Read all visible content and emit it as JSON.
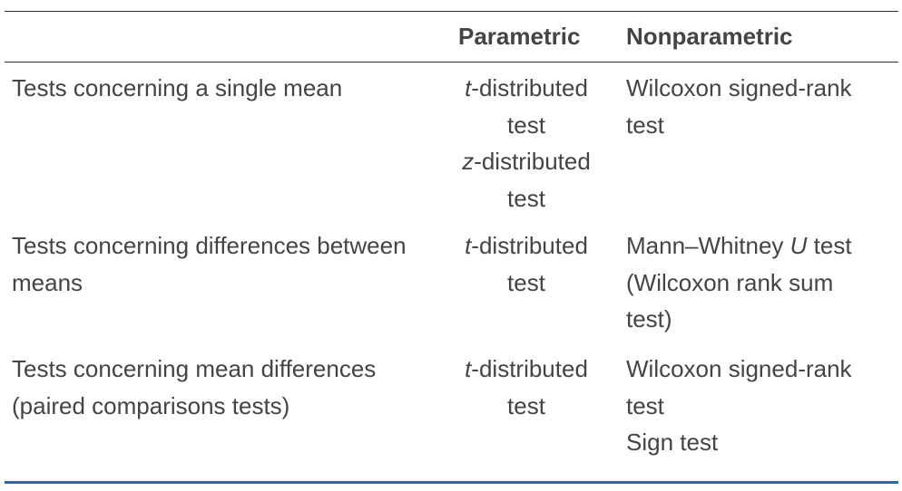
{
  "headers": {
    "description": "",
    "parametric": "Parametric",
    "nonparametric": "Nonparametric"
  },
  "rows": [
    {
      "description": "Tests concerning a single mean",
      "parametric": [
        {
          "italic": "t",
          "rest": "-distributed",
          "line2": "test"
        },
        {
          "italic": "z",
          "rest": "-distributed",
          "line2": "test"
        }
      ],
      "nonparametric": [
        "Wilcoxon signed-rank",
        "test"
      ]
    },
    {
      "description": "Tests concerning differences between means",
      "parametric": [
        {
          "italic": "t",
          "rest": "-distributed",
          "line2": "test"
        }
      ],
      "nonparametric": {
        "line1_before": "Mann–Whitney ",
        "line1_italic": "U",
        "line1_after": " test",
        "line2": "(Wilcoxon rank sum",
        "line3": "test)"
      }
    },
    {
      "description": "Tests concerning mean differences (paired comparisons tests)",
      "parametric": [
        {
          "italic": "t",
          "rest": "-distributed",
          "line2": "test"
        }
      ],
      "nonparametric": [
        "Wilcoxon signed-rank",
        "test",
        "Sign test"
      ]
    }
  ],
  "colors": {
    "text": "#444444",
    "rule": "#333333",
    "bottom_rule": "#1f6fa8"
  }
}
